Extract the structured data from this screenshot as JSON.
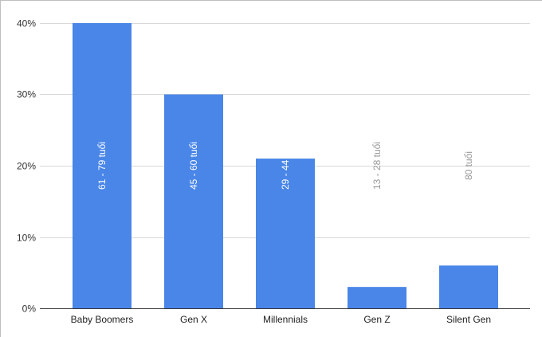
{
  "chart_data": {
    "type": "bar",
    "categories": [
      "Baby Boomers",
      "Gen X",
      "Millennials",
      "Gen Z",
      "Silent Gen"
    ],
    "values": [
      0.4,
      0.3,
      0.21,
      0.03,
      0.06
    ],
    "data_labels": [
      "61 - 79 tuổi",
      "45 - 60 tuổi",
      "29 - 44 tuổi",
      "13 - 28 tuổi",
      "80 tuổi"
    ],
    "y_ticks": [
      "0%",
      "10%",
      "20%",
      "30%",
      "40%"
    ],
    "ylim": [
      0,
      0.4
    ],
    "grid": true,
    "legend": "none",
    "colors": {
      "bar": "#4a86e8",
      "grid": "#d9d9d9",
      "axis": "#333333",
      "label_inside": "#ffffff",
      "label_outside": "#999999"
    }
  }
}
